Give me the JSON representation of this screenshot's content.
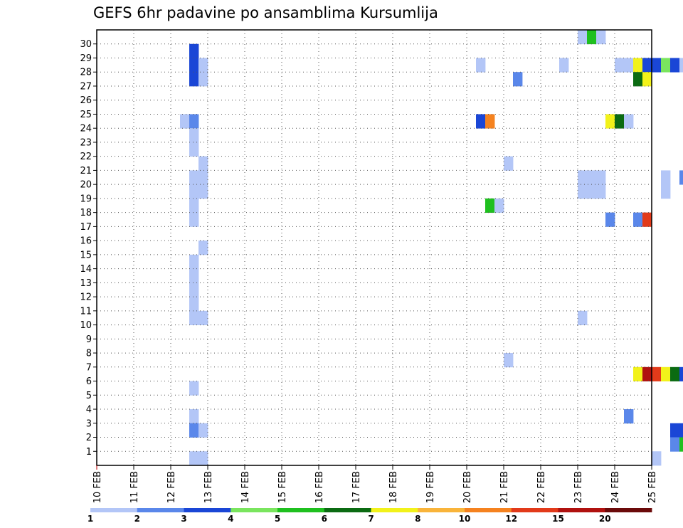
{
  "chart_data": {
    "type": "heatmap",
    "title": "GEFS 6hr padavine po ansamblima Kursumlija",
    "xlabel": "",
    "ylabel": "",
    "x_ticks": [
      "10 FEB",
      "11 FEB",
      "12 FEB",
      "13 FEB",
      "14 FEB",
      "15 FEB",
      "16 FEB",
      "17 FEB",
      "18 FEB",
      "19 FEB",
      "20 FEB",
      "21 FEB",
      "22 FEB",
      "23 FEB",
      "24 FEB",
      "25 FEB"
    ],
    "y_ticks": [
      "1",
      "2",
      "3",
      "4",
      "5",
      "6",
      "7",
      "8",
      "9",
      "10",
      "11",
      "12",
      "13",
      "14",
      "15",
      "16",
      "17",
      "18",
      "19",
      "20",
      "21",
      "22",
      "23",
      "24",
      "25",
      "26",
      "27",
      "28",
      "29",
      "30"
    ],
    "x_range_days": [
      0,
      15
    ],
    "time_step_hours": 6,
    "grid": true,
    "colorbar": {
      "labels": [
        "1",
        "2",
        "3",
        "4",
        "5",
        "6",
        "7",
        "8",
        "10",
        "12",
        "15",
        "20"
      ],
      "colors": [
        "#b3c6f7",
        "#5a87ea",
        "#1a46d6",
        "#7ae55e",
        "#1fc01f",
        "#0b6b12",
        "#f2f21a",
        "#f9b43a",
        "#f5821f",
        "#e23a1a",
        "#b0110f",
        "#6b0a0a"
      ],
      "placement": "bottom"
    },
    "cells": [
      {
        "m": 30,
        "s": 52,
        "v": 1
      },
      {
        "m": 30,
        "s": 53,
        "v": 5
      },
      {
        "m": 30,
        "s": 54,
        "v": 1
      },
      {
        "m": 29,
        "s": 10,
        "v": 3
      },
      {
        "m": 28,
        "s": 10,
        "v": 3
      },
      {
        "m": 28,
        "s": 11,
        "v": 1
      },
      {
        "m": 28,
        "s": 41,
        "v": 1
      },
      {
        "m": 28,
        "s": 50,
        "v": 1
      },
      {
        "m": 28,
        "s": 56,
        "v": 1
      },
      {
        "m": 28,
        "s": 57,
        "v": 1
      },
      {
        "m": 28,
        "s": 58,
        "v": 7
      },
      {
        "m": 28,
        "s": 59,
        "v": 3
      },
      {
        "m": 28,
        "s": 60,
        "v": 3
      },
      {
        "m": 28,
        "s": 61,
        "v": 4
      },
      {
        "m": 28,
        "s": 62,
        "v": 3
      },
      {
        "m": 28,
        "s": 63,
        "v": 1
      },
      {
        "m": 28,
        "s": 64,
        "v": 1
      },
      {
        "m": 28,
        "s": 65,
        "v": 3
      },
      {
        "m": 27,
        "s": 10,
        "v": 3
      },
      {
        "m": 27,
        "s": 11,
        "v": 1
      },
      {
        "m": 27,
        "s": 45,
        "v": 2
      },
      {
        "m": 27,
        "s": 58,
        "v": 6
      },
      {
        "m": 27,
        "s": 59,
        "v": 7
      },
      {
        "m": 27,
        "s": 64,
        "v": 2
      },
      {
        "m": 26,
        "s": 65,
        "v": 1
      },
      {
        "m": 24,
        "s": 9,
        "v": 1
      },
      {
        "m": 24,
        "s": 10,
        "v": 2
      },
      {
        "m": 24,
        "s": 41,
        "v": 3
      },
      {
        "m": 24,
        "s": 42,
        "v": 10
      },
      {
        "m": 24,
        "s": 55,
        "v": 7
      },
      {
        "m": 24,
        "s": 56,
        "v": 6
      },
      {
        "m": 24,
        "s": 57,
        "v": 1
      },
      {
        "m": 23,
        "s": 10,
        "v": 1
      },
      {
        "m": 22,
        "s": 10,
        "v": 1
      },
      {
        "m": 21,
        "s": 11,
        "v": 1
      },
      {
        "m": 21,
        "s": 44,
        "v": 1
      },
      {
        "m": 20,
        "s": 10,
        "v": 1
      },
      {
        "m": 20,
        "s": 11,
        "v": 1
      },
      {
        "m": 20,
        "s": 52,
        "v": 1
      },
      {
        "m": 20,
        "s": 53,
        "v": 1
      },
      {
        "m": 20,
        "s": 54,
        "v": 1
      },
      {
        "m": 20,
        "s": 61,
        "v": 1
      },
      {
        "m": 20,
        "s": 63,
        "v": 2
      },
      {
        "m": 19,
        "s": 10,
        "v": 1
      },
      {
        "m": 19,
        "s": 11,
        "v": 1
      },
      {
        "m": 19,
        "s": 52,
        "v": 1
      },
      {
        "m": 19,
        "s": 53,
        "v": 1
      },
      {
        "m": 19,
        "s": 54,
        "v": 1
      },
      {
        "m": 19,
        "s": 61,
        "v": 1
      },
      {
        "m": 18,
        "s": 10,
        "v": 1
      },
      {
        "m": 18,
        "s": 42,
        "v": 5
      },
      {
        "m": 18,
        "s": 43,
        "v": 1
      },
      {
        "m": 17,
        "s": 10,
        "v": 1
      },
      {
        "m": 17,
        "s": 55,
        "v": 2
      },
      {
        "m": 17,
        "s": 58,
        "v": 2
      },
      {
        "m": 17,
        "s": 59,
        "v": 12
      },
      {
        "m": 15,
        "s": 11,
        "v": 1
      },
      {
        "m": 14,
        "s": 10,
        "v": 1
      },
      {
        "m": 13,
        "s": 10,
        "v": 1
      },
      {
        "m": 12,
        "s": 10,
        "v": 1
      },
      {
        "m": 12,
        "s": 66,
        "v": 2
      },
      {
        "m": 11,
        "s": 10,
        "v": 1
      },
      {
        "m": 10,
        "s": 10,
        "v": 1
      },
      {
        "m": 10,
        "s": 11,
        "v": 1
      },
      {
        "m": 10,
        "s": 52,
        "v": 1
      },
      {
        "m": 7,
        "s": 44,
        "v": 1
      },
      {
        "m": 7,
        "s": 64,
        "v": 2
      },
      {
        "m": 6,
        "s": 58,
        "v": 7
      },
      {
        "m": 6,
        "s": 59,
        "v": 15
      },
      {
        "m": 6,
        "s": 60,
        "v": 12
      },
      {
        "m": 6,
        "s": 61,
        "v": 7
      },
      {
        "m": 6,
        "s": 62,
        "v": 6
      },
      {
        "m": 6,
        "s": 63,
        "v": 3
      },
      {
        "m": 6,
        "s": 64,
        "v": 2
      },
      {
        "m": 6,
        "s": 65,
        "v": 1
      },
      {
        "m": 5,
        "s": 10,
        "v": 1
      },
      {
        "m": 5,
        "s": 64,
        "v": 2
      },
      {
        "m": 5,
        "s": 65,
        "v": 3
      },
      {
        "m": 4,
        "s": 64,
        "v": 8
      },
      {
        "m": 3,
        "s": 10,
        "v": 1
      },
      {
        "m": 3,
        "s": 57,
        "v": 2
      },
      {
        "m": 2,
        "s": 10,
        "v": 2
      },
      {
        "m": 2,
        "s": 11,
        "v": 1
      },
      {
        "m": 2,
        "s": 62,
        "v": 3
      },
      {
        "m": 2,
        "s": 63,
        "v": 3
      },
      {
        "m": 2,
        "s": 64,
        "v": 2
      },
      {
        "m": 2,
        "s": 65,
        "v": 1
      },
      {
        "m": 1,
        "s": 62,
        "v": 2
      },
      {
        "m": 1,
        "s": 63,
        "v": 5
      },
      {
        "m": 1,
        "s": 64,
        "v": 1
      },
      {
        "m": 0,
        "s": 10,
        "v": 1
      },
      {
        "m": 0,
        "s": 11,
        "v": 1
      },
      {
        "m": 0,
        "s": 60,
        "v": 1
      }
    ]
  }
}
